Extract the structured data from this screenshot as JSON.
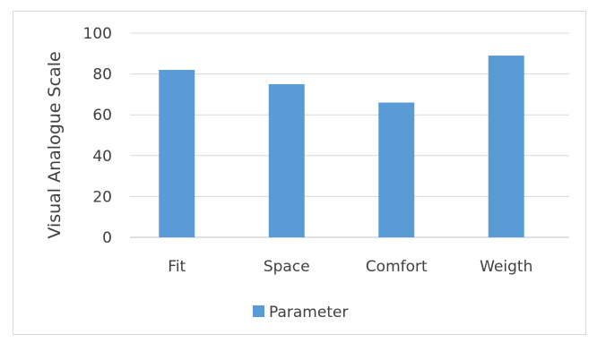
{
  "chart_data": {
    "type": "bar",
    "title": "",
    "xlabel": "",
    "ylabel": "Visual Analogue Scale",
    "categories": [
      "Fit",
      "Space",
      "Comfort",
      "Weigth"
    ],
    "series": [
      {
        "name": "Parameter",
        "values": [
          82,
          75,
          66,
          89
        ],
        "color": "#5b9bd5"
      }
    ],
    "ylim": [
      0,
      100
    ],
    "yticks": [
      0,
      20,
      40,
      60,
      80,
      100
    ],
    "grid": true,
    "legend": "bottom",
    "gridColor": "#d9d9d9",
    "axisColor": "#bfbfbf"
  }
}
